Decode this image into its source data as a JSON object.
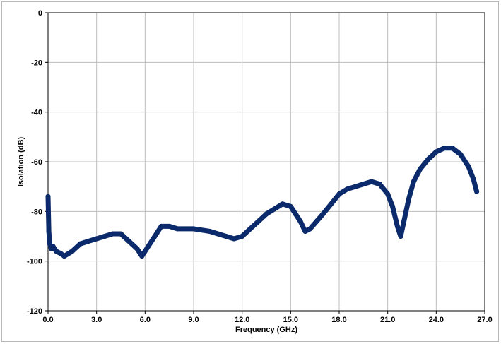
{
  "chart_data": {
    "type": "line",
    "title": "",
    "xlabel": "Frequency (GHz)",
    "ylabel": "Isolation (dB)",
    "xlim": [
      0,
      27
    ],
    "ylim": [
      -120,
      0
    ],
    "x_ticks": [
      "0.0",
      "3.0",
      "6.0",
      "9.0",
      "12.0",
      "15.0",
      "18.0",
      "21.0",
      "24.0",
      "27.0"
    ],
    "y_ticks": [
      "0",
      "-20",
      "-40",
      "-60",
      "-80",
      "-100",
      "-120"
    ],
    "grid": true,
    "legend": "none",
    "series": [
      {
        "color": "#0b2a6b",
        "x": [
          0.0,
          0.05,
          0.1,
          0.2,
          0.3,
          0.5,
          0.8,
          1.0,
          1.5,
          2.0,
          2.5,
          3.0,
          3.5,
          4.0,
          4.5,
          5.0,
          5.5,
          5.8,
          6.0,
          6.5,
          7.0,
          7.5,
          8.0,
          9.0,
          10.0,
          10.5,
          11.0,
          11.5,
          12.0,
          12.5,
          13.0,
          13.5,
          14.0,
          14.5,
          15.0,
          15.3,
          15.6,
          15.9,
          16.2,
          16.6,
          17.0,
          17.5,
          18.0,
          18.5,
          19.0,
          19.5,
          20.0,
          20.5,
          21.0,
          21.3,
          21.6,
          21.8,
          22.0,
          22.3,
          22.6,
          23.0,
          23.5,
          24.0,
          24.5,
          25.0,
          25.5,
          26.0,
          26.3,
          26.5
        ],
        "y": [
          -74,
          -88,
          -93,
          -95,
          -94,
          -96,
          -97,
          -98,
          -96,
          -93,
          -92,
          -91,
          -90,
          -89,
          -89,
          -92,
          -95,
          -98,
          -96,
          -91,
          -86,
          -86,
          -87,
          -87,
          -88,
          -89,
          -90,
          -91,
          -90,
          -87,
          -84,
          -81,
          -79,
          -77,
          -78,
          -81,
          -84,
          -88,
          -87,
          -84,
          -81,
          -77,
          -73,
          -71,
          -70,
          -69,
          -68,
          -69,
          -73,
          -78,
          -86,
          -90,
          -84,
          -75,
          -68,
          -63,
          -59,
          -56,
          -54.5,
          -54.5,
          -57,
          -62,
          -67,
          -72
        ]
      }
    ]
  }
}
